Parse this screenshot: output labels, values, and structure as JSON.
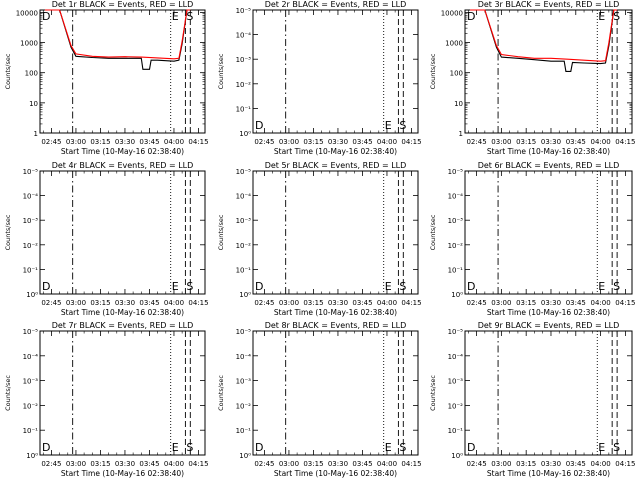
{
  "chart_data": [
    {
      "type": "line",
      "title": "Det 1r BLACK = Events, RED = LLD",
      "xlabel": "Start Time (10-May-16 02:38:40)",
      "ylabel": "Counts/sec",
      "y_scale": "log",
      "x_tick_labels": [
        "02:45",
        "03:00",
        "03:15",
        "03:30",
        "03:45",
        "04:00",
        "04:15"
      ],
      "y_tick_labels": [
        "1",
        "10",
        "100",
        "1000",
        "10000"
      ],
      "markers": [
        "D",
        "E",
        "S"
      ],
      "series": [
        {
          "name": "Events",
          "color": "#000000",
          "x": [
            "02:41",
            "02:50",
            "02:57",
            "03:00",
            "03:10",
            "03:20",
            "03:30",
            "03:40",
            "03:41",
            "03:45",
            "03:46",
            "03:50",
            "04:00",
            "04:03",
            "04:05",
            "04:08",
            "04:10"
          ],
          "y": [
            15000,
            14000,
            700,
            350,
            320,
            300,
            300,
            300,
            130,
            130,
            260,
            260,
            240,
            260,
            900,
            14000,
            15000
          ]
        },
        {
          "name": "LLD",
          "color": "#ff0000",
          "x": [
            "02:41",
            "02:50",
            "02:57",
            "03:00",
            "03:10",
            "03:20",
            "03:30",
            "03:40",
            "03:50",
            "04:00",
            "04:03",
            "04:05",
            "04:08",
            "04:10"
          ],
          "y": [
            15000,
            14000,
            800,
            420,
            350,
            330,
            340,
            330,
            310,
            290,
            300,
            1100,
            14000,
            15000
          ]
        }
      ]
    },
    {
      "type": "line",
      "title": "Det 2r BLACK = Events, RED = LLD",
      "xlabel": "Start Time (10-May-16 02:38:40)",
      "ylabel": "Counts/sec",
      "y_scale": "log",
      "x_tick_labels": [
        "02:45",
        "03:00",
        "03:15",
        "03:30",
        "03:45",
        "04:00",
        "04:15"
      ],
      "y_tick_labels": [
        "10⁰",
        "10⁻¹",
        "10⁻²",
        "10⁻³",
        "10⁻⁴",
        "10⁻⁵"
      ],
      "markers": [
        "D",
        "E",
        "S"
      ],
      "series": []
    },
    {
      "type": "line",
      "title": "Det 3r BLACK = Events, RED = LLD",
      "xlabel": "Start Time (10-May-16 02:38:40)",
      "ylabel": "Counts/sec",
      "y_scale": "log",
      "x_tick_labels": [
        "02:45",
        "03:00",
        "03:15",
        "03:30",
        "03:45",
        "04:00",
        "04:15"
      ],
      "y_tick_labels": [
        "1",
        "10",
        "100",
        "1000",
        "10000"
      ],
      "markers": [
        "D",
        "E",
        "S"
      ],
      "series": [
        {
          "name": "Events",
          "color": "#000000",
          "x": [
            "02:41",
            "02:50",
            "02:57",
            "03:00",
            "03:10",
            "03:20",
            "03:30",
            "03:38",
            "03:39",
            "03:42",
            "03:43",
            "03:50",
            "04:00",
            "04:03",
            "04:05",
            "04:08",
            "04:10"
          ],
          "y": [
            15000,
            14000,
            700,
            330,
            300,
            270,
            240,
            240,
            110,
            110,
            220,
            210,
            200,
            210,
            800,
            14000,
            15000
          ]
        },
        {
          "name": "LLD",
          "color": "#ff0000",
          "x": [
            "02:41",
            "02:50",
            "02:57",
            "03:00",
            "03:10",
            "03:20",
            "03:30",
            "03:40",
            "03:50",
            "04:00",
            "04:03",
            "04:05",
            "04:08",
            "04:10"
          ],
          "y": [
            15000,
            14000,
            800,
            400,
            340,
            300,
            300,
            280,
            260,
            240,
            250,
            1000,
            14000,
            15000
          ]
        }
      ]
    },
    {
      "type": "line",
      "title": "Det 4r BLACK = Events, RED = LLD",
      "xlabel": "Start Time (10-May-16 02:38:40)",
      "ylabel": "Counts/sec",
      "y_scale": "log",
      "x_tick_labels": [
        "02:45",
        "03:00",
        "03:15",
        "03:30",
        "03:45",
        "04:00",
        "04:15"
      ],
      "y_tick_labels": [
        "10⁰",
        "10⁻¹",
        "10⁻²",
        "10⁻³",
        "10⁻⁴",
        "10⁻⁵"
      ],
      "markers": [
        "D",
        "E",
        "S"
      ],
      "series": []
    },
    {
      "type": "line",
      "title": "Det 5r BLACK = Events, RED = LLD",
      "xlabel": "Start Time (10-May-16 02:38:40)",
      "ylabel": "Counts/sec",
      "y_scale": "log",
      "x_tick_labels": [
        "02:45",
        "03:00",
        "03:15",
        "03:30",
        "03:45",
        "04:00",
        "04:15"
      ],
      "y_tick_labels": [
        "10⁰",
        "10⁻¹",
        "10⁻²",
        "10⁻³",
        "10⁻⁴",
        "10⁻⁵"
      ],
      "markers": [
        "D",
        "E",
        "S"
      ],
      "series": []
    },
    {
      "type": "line",
      "title": "Det 6r BLACK = Events, RED = LLD",
      "xlabel": "Start Time (10-May-16 02:38:40)",
      "ylabel": "Counts/sec",
      "y_scale": "log",
      "x_tick_labels": [
        "02:45",
        "03:00",
        "03:15",
        "03:30",
        "03:45",
        "04:00",
        "04:15"
      ],
      "y_tick_labels": [
        "10⁰",
        "10⁻¹",
        "10⁻²",
        "10⁻³",
        "10⁻⁴",
        "10⁻⁵"
      ],
      "markers": [
        "D",
        "E",
        "S"
      ],
      "series": []
    },
    {
      "type": "line",
      "title": "Det 7r BLACK = Events, RED = LLD",
      "xlabel": "Start Time (10-May-16 02:38:40)",
      "ylabel": "Counts/sec",
      "y_scale": "log",
      "x_tick_labels": [
        "02:45",
        "03:00",
        "03:15",
        "03:30",
        "03:45",
        "04:00",
        "04:15"
      ],
      "y_tick_labels": [
        "10⁰",
        "10⁻¹",
        "10⁻²",
        "10⁻³",
        "10⁻⁴",
        "10⁻⁵"
      ],
      "markers": [
        "D",
        "E",
        "S"
      ],
      "series": []
    },
    {
      "type": "line",
      "title": "Det 8r BLACK = Events, RED = LLD",
      "xlabel": "Start Time (10-May-16 02:38:40)",
      "ylabel": "Counts/sec",
      "y_scale": "log",
      "x_tick_labels": [
        "02:45",
        "03:00",
        "03:15",
        "03:30",
        "03:45",
        "04:00",
        "04:15"
      ],
      "y_tick_labels": [
        "10⁰",
        "10⁻¹",
        "10⁻²",
        "10⁻³",
        "10⁻⁴",
        "10⁻⁵"
      ],
      "markers": [
        "D",
        "E",
        "S"
      ],
      "series": []
    },
    {
      "type": "line",
      "title": "Det 9r BLACK = Events, RED = LLD",
      "xlabel": "Start Time (10-May-16 02:38:40)",
      "ylabel": "Counts/sec",
      "y_scale": "log",
      "x_tick_labels": [
        "02:45",
        "03:00",
        "03:15",
        "03:30",
        "03:45",
        "04:00",
        "04:15"
      ],
      "y_tick_labels": [
        "10⁰",
        "10⁻¹",
        "10⁻²",
        "10⁻³",
        "10⁻⁴",
        "10⁻⁵"
      ],
      "markers": [
        "D",
        "E",
        "S"
      ],
      "series": []
    }
  ]
}
